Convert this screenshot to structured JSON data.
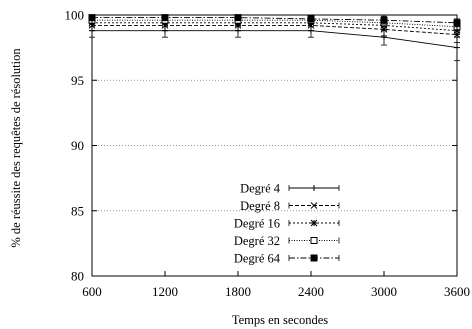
{
  "chart_data": {
    "type": "line",
    "title": "",
    "xlabel": "Temps en secondes",
    "ylabel": "% de réussite des requêtes de résolution",
    "x": [
      600,
      1200,
      1800,
      2400,
      3000,
      3600
    ],
    "xlim": [
      600,
      3600
    ],
    "ylim": [
      80,
      100
    ],
    "xticks": [
      "600",
      "1200",
      "1800",
      "2400",
      "3000",
      "3600"
    ],
    "yticks": [
      "80",
      "85",
      "90",
      "95",
      "100"
    ],
    "grid": "horizontal dotted",
    "legend_position": "bottom-center",
    "error_bars": true,
    "series": [
      {
        "name": "Degré 4",
        "marker": "plus",
        "dash": "solid",
        "values": [
          98.8,
          98.8,
          98.8,
          98.8,
          98.3,
          97.5
        ],
        "error": [
          0.5,
          0.5,
          0.5,
          0.5,
          0.6,
          1.0
        ]
      },
      {
        "name": "Degré 8",
        "marker": "cross",
        "dash": "dashed",
        "values": [
          99.2,
          99.2,
          99.2,
          99.2,
          98.9,
          98.5
        ],
        "error": [
          0.4,
          0.4,
          0.4,
          0.4,
          0.5,
          0.6
        ]
      },
      {
        "name": "Degré 16",
        "marker": "star",
        "dash": "dotted",
        "values": [
          99.4,
          99.4,
          99.4,
          99.4,
          99.2,
          98.8
        ],
        "error": [
          0.3,
          0.3,
          0.3,
          0.3,
          0.4,
          0.5
        ]
      },
      {
        "name": "Degré 32",
        "marker": "open-square",
        "dash": "fine-dot",
        "values": [
          99.6,
          99.6,
          99.6,
          99.6,
          99.4,
          99.1
        ],
        "error": [
          0.3,
          0.3,
          0.3,
          0.3,
          0.3,
          0.4
        ]
      },
      {
        "name": "Degré 64",
        "marker": "filled-square",
        "dash": "dash-dot",
        "values": [
          99.8,
          99.8,
          99.8,
          99.7,
          99.6,
          99.4
        ],
        "error": [
          0.2,
          0.2,
          0.2,
          0.2,
          0.3,
          0.3
        ]
      }
    ]
  }
}
